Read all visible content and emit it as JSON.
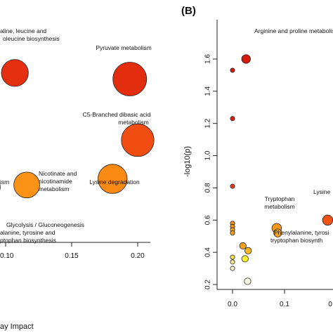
{
  "chart_data": [
    {
      "type": "scatter",
      "panel": "",
      "xlabel": "ay Impact",
      "ylabel": "",
      "x_ticks": [
        "0.10",
        "0.15",
        "0.20"
      ],
      "x_tick_values": [
        0.1,
        0.15,
        0.2
      ],
      "xlim": [
        0.085,
        0.215
      ],
      "ylim": [
        0,
        1
      ],
      "grid": false,
      "points": [
        {
          "x": 0.107,
          "y": 0.78,
          "size": 2.4,
          "color": "#e62e10",
          "label": [
            "aline, leucine and",
            "oleucine biosynthesis"
          ]
        },
        {
          "x": 0.194,
          "y": 0.75,
          "size": 3.0,
          "color": "#e32d0f",
          "label": [
            "Pyruvate metabolism"
          ]
        },
        {
          "x": 0.2,
          "y": 0.45,
          "size": 2.9,
          "color": "#f24d10",
          "label": [
            "C5-Branched dibasic acid",
            "metabolism"
          ]
        },
        {
          "x": 0.181,
          "y": 0.26,
          "size": 2.6,
          "color": "#f98a14",
          "label": [
            "Lysine degradation"
          ]
        },
        {
          "x": 0.116,
          "y": 0.23,
          "size": 2.3,
          "color": "#f99217",
          "label": [
            "Nicotinate and",
            "nicotinamide",
            "metabolism"
          ]
        },
        {
          "x": 0.085,
          "y": 0.28,
          "size": 1.8,
          "color": "#f99a18",
          "label": [
            "ism"
          ]
        },
        {
          "x": 0.087,
          "y": 0.22,
          "size": 2.1,
          "color": "#fed319",
          "label": [
            "Glycolysis / Gluconeogenesis",
            "alanine, tyrosine and",
            "ptophan biosynthesis"
          ]
        }
      ]
    },
    {
      "type": "scatter",
      "panel": "(B)",
      "xlabel": "",
      "ylabel": "-log10(p)",
      "x_ticks": [
        "0.0",
        "0.1",
        "0"
      ],
      "x_tick_values": [
        0.0,
        0.1,
        0.2
      ],
      "y_ticks": [
        "0.2",
        "0.4",
        "0.6",
        "0.8",
        "1.0",
        "1.2",
        "1.4",
        "1.6"
      ],
      "y_tick_values": [
        0.2,
        0.4,
        0.6,
        0.8,
        1.0,
        1.2,
        1.4,
        1.6
      ],
      "xlim": [
        -0.02,
        0.2
      ],
      "ylim": [
        0.18,
        1.66
      ],
      "grid": false,
      "points": [
        {
          "x": 0.026,
          "y": 1.6,
          "size": 1.2,
          "color": "#d6190d",
          "label": [
            "Arginine and proline metabolism"
          ]
        },
        {
          "x": 0.0,
          "y": 1.53,
          "size": 0.6,
          "color": "#d6190d",
          "label": []
        },
        {
          "x": 0.0,
          "y": 1.23,
          "size": 0.6,
          "color": "#db1f0e",
          "label": []
        },
        {
          "x": 0.0,
          "y": 0.81,
          "size": 0.6,
          "color": "#e83a10",
          "label": []
        },
        {
          "x": 0.0,
          "y": 0.58,
          "size": 0.6,
          "color": "#f9981a",
          "label": []
        },
        {
          "x": 0.0,
          "y": 0.56,
          "size": 0.6,
          "color": "#f9981a",
          "label": []
        },
        {
          "x": 0.0,
          "y": 0.54,
          "size": 0.6,
          "color": "#f9a21b",
          "label": []
        },
        {
          "x": 0.0,
          "y": 0.52,
          "size": 0.6,
          "color": "#f9a21b",
          "label": []
        },
        {
          "x": 0.0,
          "y": 0.37,
          "size": 0.6,
          "color": "#fee04a",
          "label": []
        },
        {
          "x": 0.0,
          "y": 0.34,
          "size": 0.6,
          "color": "#fef08a",
          "label": []
        },
        {
          "x": 0.0,
          "y": 0.3,
          "size": 0.6,
          "color": "#fffbd0",
          "label": []
        },
        {
          "x": 0.02,
          "y": 0.44,
          "size": 0.9,
          "color": "#faa21e",
          "label": []
        },
        {
          "x": 0.03,
          "y": 0.41,
          "size": 0.9,
          "color": "#fbb520",
          "label": []
        },
        {
          "x": 0.024,
          "y": 0.36,
          "size": 0.9,
          "color": "#fef030",
          "label": []
        },
        {
          "x": 0.029,
          "y": 0.22,
          "size": 0.9,
          "color": "#fffde8",
          "label": []
        },
        {
          "x": 0.085,
          "y": 0.55,
          "size": 1.3,
          "color": "#f79a1b",
          "label": [
            "Tryptophan",
            "metabolism"
          ]
        },
        {
          "x": 0.087,
          "y": 0.52,
          "size": 1.1,
          "color": "#f9a21b",
          "label": [
            "Phenylalanine, tyrosi",
            "tryptophan biosynth"
          ]
        },
        {
          "x": 0.183,
          "y": 0.6,
          "size": 1.4,
          "color": "#ef5215",
          "label": [
            "Lysine"
          ]
        }
      ]
    }
  ]
}
